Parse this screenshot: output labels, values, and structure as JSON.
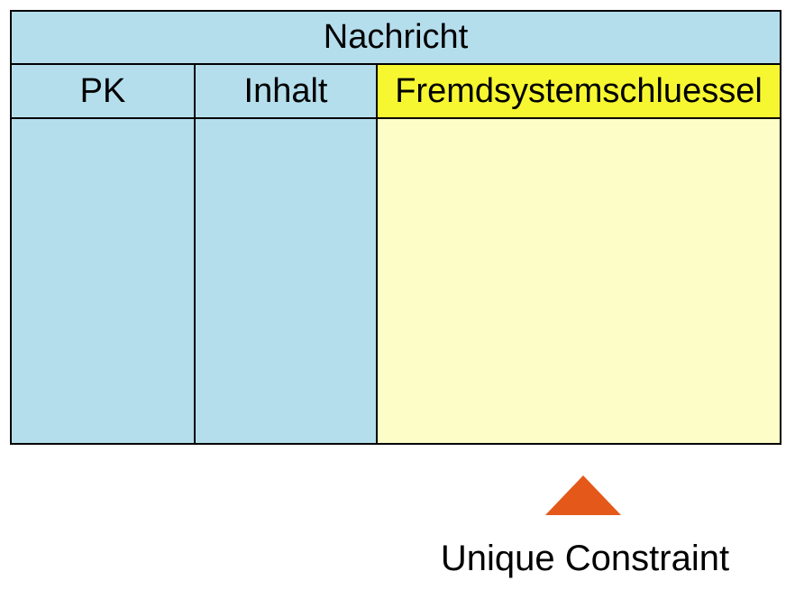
{
  "diagram": {
    "entity": {
      "title": "Nachricht",
      "columns": [
        {
          "name": "PK",
          "highlighted": false
        },
        {
          "name": "Inhalt",
          "highlighted": false
        },
        {
          "name": "Fremdsystemschluessel",
          "highlighted": true
        }
      ],
      "body_rows_empty": true
    },
    "annotation": {
      "icon": "triangle-up-icon",
      "label": "Unique Constraint"
    }
  },
  "colors": {
    "background": "#FFFFFF",
    "cell_blue": "#B5DEED",
    "header_yellow": "#F7F731",
    "body_yellow": "#FDFDC8",
    "arrow_orange": "#E4591A",
    "border": "#000000",
    "text": "#000000"
  }
}
